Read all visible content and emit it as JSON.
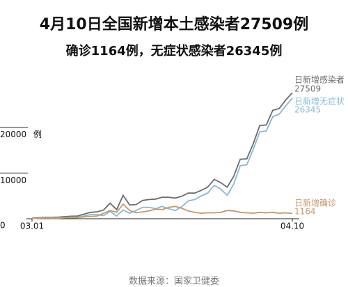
{
  "chart_data": {
    "type": "line",
    "title": "4月10日全国新增本土感染者27509例",
    "subtitle": "确诊1164例，无症状感染者26345例",
    "source": "数据来源：国家卫健委",
    "y_unit": "例",
    "categories": [
      "03.01",
      null,
      null,
      null,
      null,
      null,
      null,
      null,
      null,
      null,
      null,
      null,
      null,
      null,
      null,
      null,
      null,
      null,
      null,
      null,
      null,
      null,
      null,
      null,
      null,
      null,
      null,
      null,
      null,
      null,
      null,
      null,
      null,
      null,
      null,
      null,
      null,
      null,
      null,
      null,
      "04.10"
    ],
    "ylim": [
      0,
      30000
    ],
    "yticks": [
      0,
      10000,
      20000
    ],
    "series": [
      {
        "name": "日新增感染者",
        "color": "#6b6b6b",
        "value_labels": {
          "40": "27509"
        },
        "values": [
          110,
          200,
          300,
          300,
          350,
          450,
          550,
          600,
          1000,
          1400,
          1500,
          1900,
          3400,
          2000,
          5100,
          3000,
          3100,
          4000,
          4200,
          4300,
          4700,
          4700,
          4500,
          4900,
          5600,
          5600,
          6200,
          6900,
          8600,
          7900,
          6900,
          9300,
          13000,
          13100,
          16400,
          20400,
          20500,
          23700,
          24100,
          26000,
          27509
        ]
      },
      {
        "name": "日新增无症状",
        "color": "#86b9d6",
        "value_labels": {
          "40": "26345"
        },
        "values": [
          50,
          100,
          180,
          200,
          250,
          250,
          350,
          350,
          600,
          900,
          900,
          700,
          1600,
          600,
          1900,
          1200,
          1800,
          2500,
          2500,
          2200,
          2700,
          2200,
          1800,
          2600,
          3900,
          4200,
          5000,
          5600,
          7300,
          6500,
          5100,
          7600,
          11600,
          11800,
          15200,
          19000,
          19200,
          22300,
          22900,
          24700,
          26345
        ]
      },
      {
        "name": "日新增确诊",
        "color": "#c4986a",
        "value_labels": {
          "40": "1164"
        },
        "values": [
          60,
          100,
          120,
          100,
          100,
          200,
          200,
          250,
          400,
          500,
          600,
          1200,
          1800,
          1400,
          3200,
          1800,
          1300,
          1500,
          1700,
          2100,
          2000,
          2500,
          2700,
          2300,
          1700,
          1400,
          1200,
          1300,
          1300,
          1400,
          1800,
          1700,
          1400,
          1300,
          1200,
          1400,
          1300,
          1400,
          1200,
          1300,
          1164
        ]
      }
    ]
  }
}
